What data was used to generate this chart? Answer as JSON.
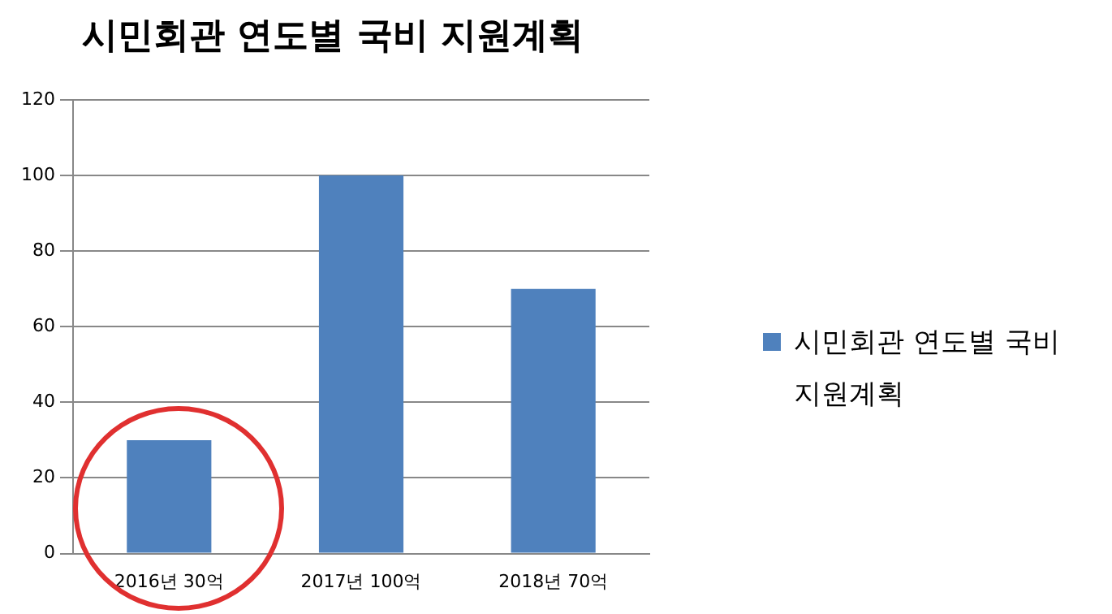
{
  "chart_data": {
    "type": "bar",
    "title": "시민회관 연도별 국비 지원계획",
    "categories": [
      "2016년 30억",
      "2017년 100억",
      "2018년 70억"
    ],
    "series": [
      {
        "name": "시민회관 연도별 국비 지원계획",
        "color": "#4f81bd",
        "values": [
          30,
          100,
          70
        ]
      }
    ],
    "ylim": [
      0,
      120
    ],
    "yticks": [
      0,
      20,
      40,
      60,
      80,
      100,
      120
    ],
    "grid": "y",
    "legend": "right"
  }
}
